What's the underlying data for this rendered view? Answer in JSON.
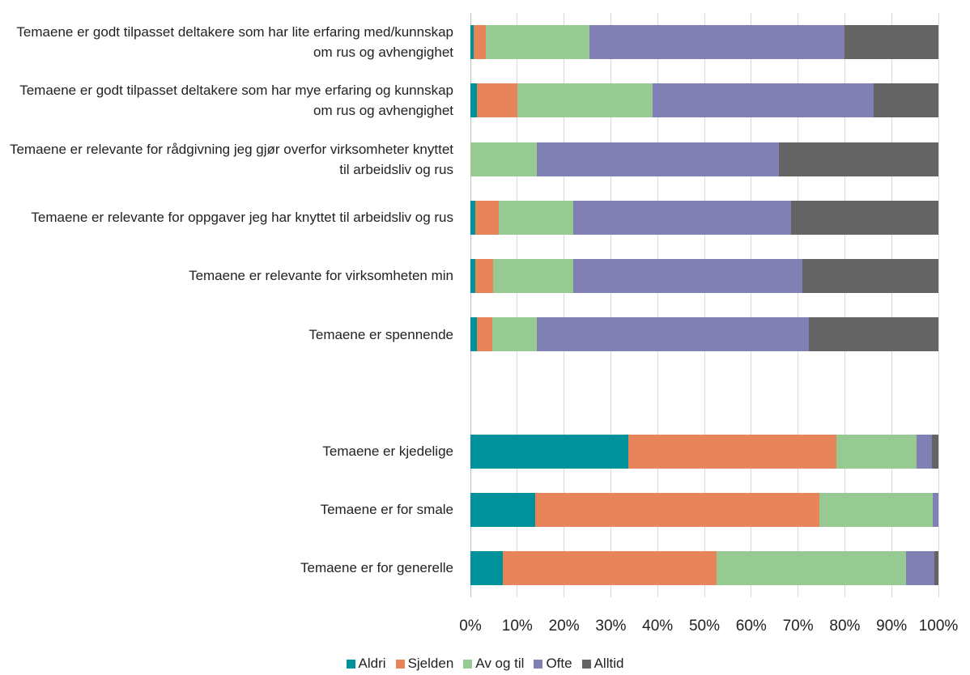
{
  "chart_data": {
    "type": "stacked-bar-horizontal",
    "categories": [
      "Temaene er godt tilpasset deltakere som har lite erfaring med/kunnskap om rus og avhengighet",
      "Temaene er godt tilpasset deltakere som har mye erfaring og kunnskap om rus og avhengighet",
      "Temaene er relevante for rådgivning jeg gjør overfor virksomheter knyttet til arbeidsliv og rus",
      "Temaene er relevante for oppgaver jeg har knyttet til arbeidsliv og rus",
      "Temaene er relevante for virksomheten min",
      "Temaene er spennende",
      null,
      "Temaene er kjedelige",
      "Temaene er for smale",
      "Temaene er for generelle"
    ],
    "series": [
      {
        "name": "Aldri",
        "color": "#00929a",
        "values": [
          0.7,
          1.4,
          0,
          1.0,
          1.0,
          1.4,
          null,
          33.7,
          13.8,
          6.9
        ]
      },
      {
        "name": "Sjelden",
        "color": "#e8845a",
        "values": [
          2.6,
          8.6,
          0,
          5.0,
          3.9,
          3.3,
          null,
          44.5,
          60.8,
          45.7
        ]
      },
      {
        "name": "Av og til",
        "color": "#97c993",
        "values": [
          22.1,
          28.9,
          14.2,
          16.0,
          17.1,
          9.5,
          null,
          17.1,
          24.2,
          40.5
        ]
      },
      {
        "name": "Ofte",
        "color": "#8080b4",
        "values": [
          54.6,
          47.3,
          51.7,
          46.5,
          49.0,
          58.1,
          null,
          3.3,
          1.2,
          6.0
        ]
      },
      {
        "name": "Alltid",
        "color": "#646464",
        "values": [
          20.0,
          13.8,
          34.1,
          31.5,
          29.0,
          27.7,
          null,
          1.4,
          0,
          0.9
        ]
      }
    ],
    "xlim": [
      0,
      100
    ],
    "xticks": [
      {
        "value": 0,
        "label": "0%"
      },
      {
        "value": 10,
        "label": "10%"
      },
      {
        "value": 20,
        "label": "20%"
      },
      {
        "value": 30,
        "label": "30%"
      },
      {
        "value": 40,
        "label": "40%"
      },
      {
        "value": 50,
        "label": "50%"
      },
      {
        "value": 60,
        "label": "60%"
      },
      {
        "value": 70,
        "label": "70%"
      },
      {
        "value": 80,
        "label": "80%"
      },
      {
        "value": 90,
        "label": "90%"
      },
      {
        "value": 100,
        "label": "100%"
      }
    ],
    "grid": true,
    "legend": "bottom"
  }
}
